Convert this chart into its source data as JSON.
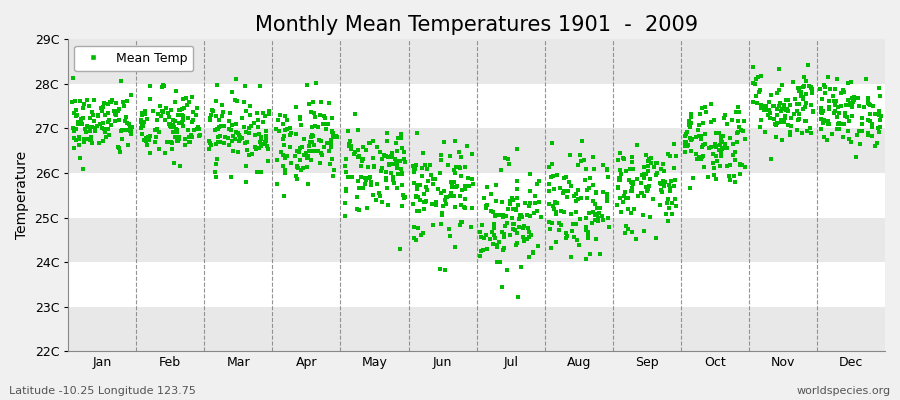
{
  "title": "Monthly Mean Temperatures 1901  -  2009",
  "ylabel": "Temperature",
  "subtitle_left": "Latitude -10.25 Longitude 123.75",
  "subtitle_right": "worldspecies.org",
  "legend_label": "Mean Temp",
  "months": [
    "Jan",
    "Feb",
    "Mar",
    "Apr",
    "May",
    "Jun",
    "Jul",
    "Aug",
    "Sep",
    "Oct",
    "Nov",
    "Dec"
  ],
  "ylim": [
    22.0,
    29.0
  ],
  "yticks": [
    22,
    23,
    24,
    25,
    26,
    27,
    28,
    29
  ],
  "ytick_labels": [
    "22C",
    "23C",
    "24C",
    "25C",
    "26C",
    "27C",
    "28C",
    "29C"
  ],
  "marker_color": "#00BB00",
  "marker_size": 3.5,
  "background_color": "#f0f0f0",
  "band_color_alt": "#e8e8e8",
  "band_color_white": "#ffffff",
  "title_fontsize": 15,
  "axis_fontsize": 10,
  "tick_fontsize": 9,
  "n_years": 109,
  "mean_temps": [
    27.1,
    27.05,
    26.95,
    26.75,
    26.1,
    25.5,
    25.0,
    25.2,
    25.7,
    26.7,
    27.5,
    27.35
  ],
  "std_temps": [
    0.38,
    0.42,
    0.42,
    0.48,
    0.52,
    0.58,
    0.62,
    0.58,
    0.52,
    0.48,
    0.42,
    0.38
  ],
  "seed": 42
}
